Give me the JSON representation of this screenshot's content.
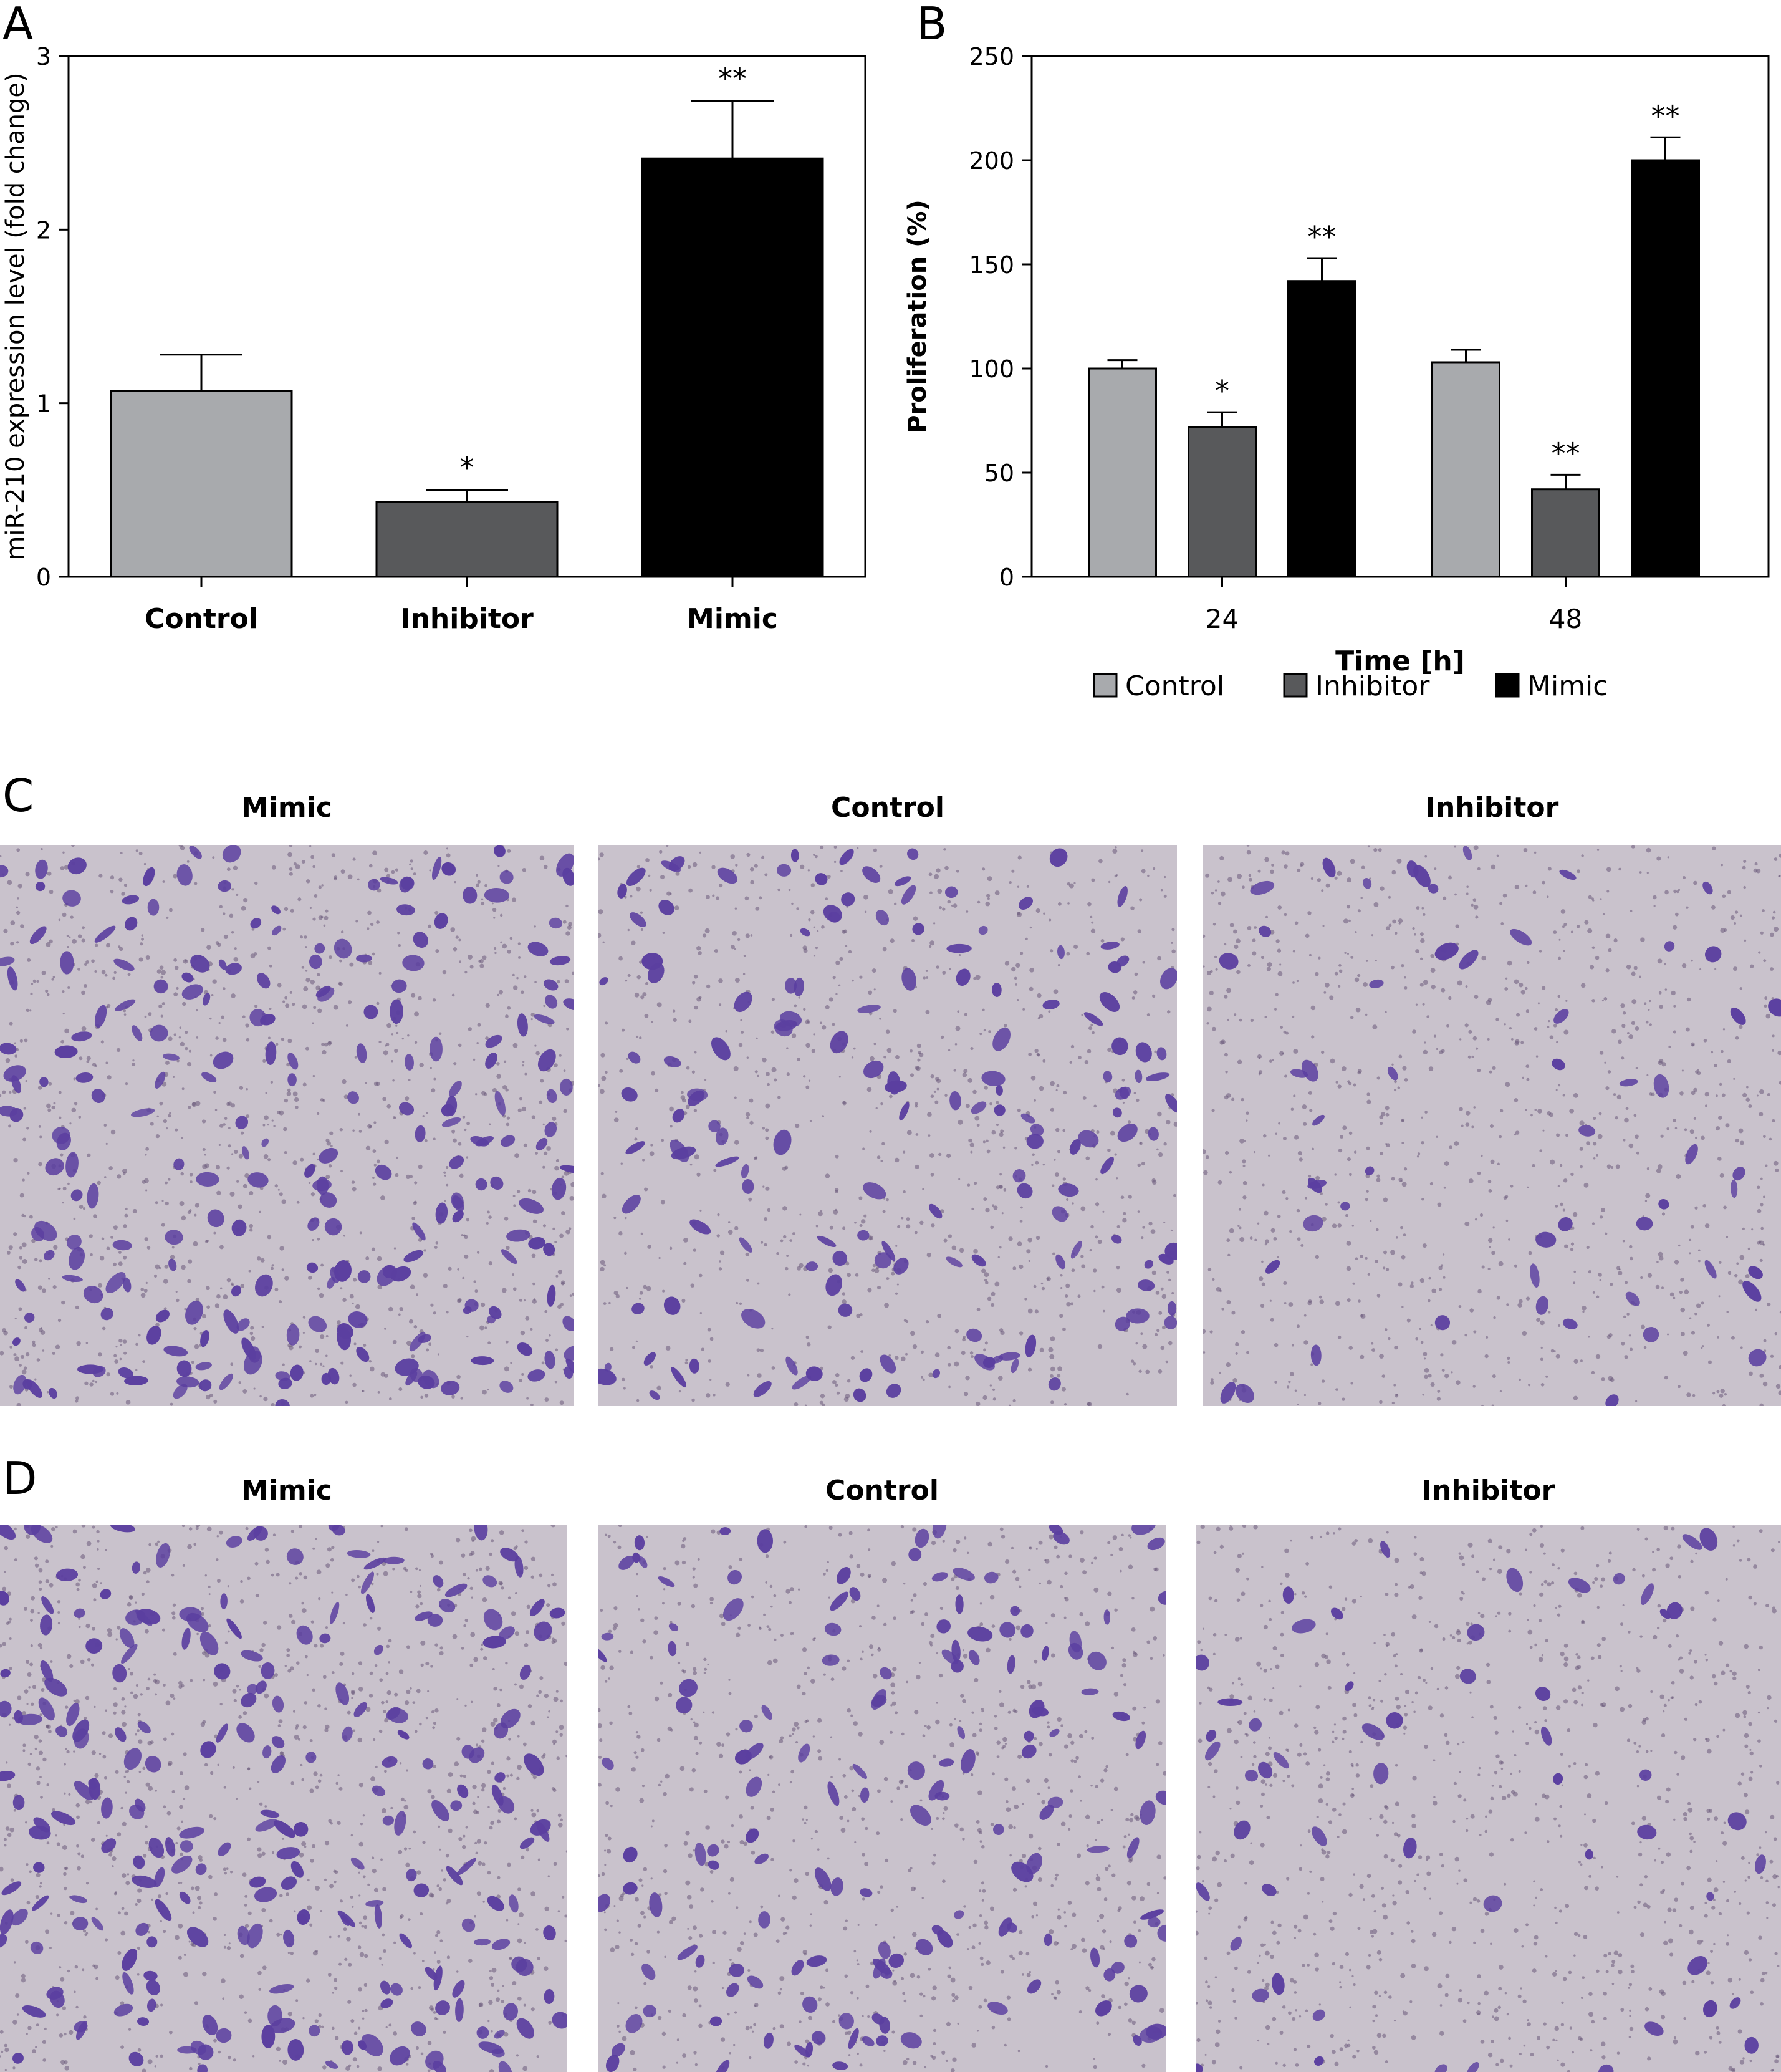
{
  "panels": {
    "A": "A",
    "B": "B",
    "C": "C",
    "D": "D"
  },
  "chart_data": [
    {
      "id": "A",
      "type": "bar",
      "categories": [
        "Control",
        "Inhibitor",
        "Mimic"
      ],
      "values": [
        1.07,
        0.43,
        2.41
      ],
      "errors": [
        0.21,
        0.07,
        0.33
      ],
      "significance": [
        "",
        "*",
        "**"
      ],
      "colors": [
        "#a8aaad",
        "#58595b",
        "#000000"
      ],
      "ylabel": "miR-210 expression level (fold change)",
      "xlabel": "",
      "ylim": [
        0,
        3
      ],
      "yticks": [
        0,
        1,
        2,
        3
      ],
      "grid": false
    },
    {
      "id": "B",
      "type": "bar",
      "categories": [
        "24",
        "48"
      ],
      "series": [
        {
          "name": "Control",
          "values": [
            100,
            103
          ],
          "errors": [
            4,
            6
          ],
          "significance": [
            "",
            ""
          ],
          "color": "#a8aaad"
        },
        {
          "name": "Inhibitor",
          "values": [
            72,
            42
          ],
          "errors": [
            7,
            7
          ],
          "significance": [
            "*",
            "**"
          ],
          "color": "#58595b"
        },
        {
          "name": "Mimic",
          "values": [
            142,
            200
          ],
          "errors": [
            11,
            11
          ],
          "significance": [
            "**",
            "**"
          ],
          "color": "#000000"
        }
      ],
      "xlabel": "Time [h]",
      "ylabel": "Proliferation (%)",
      "ylim": [
        0,
        250
      ],
      "yticks": [
        0,
        50,
        100,
        150,
        200,
        250
      ],
      "legend": "bottom",
      "grid": false
    }
  ],
  "micrographs": {
    "C": [
      {
        "title": "Mimic",
        "density": "high"
      },
      {
        "title": "Control",
        "density": "medium"
      },
      {
        "title": "Inhibitor",
        "density": "low"
      }
    ],
    "D": [
      {
        "title": "Mimic",
        "density": "high"
      },
      {
        "title": "Control",
        "density": "medium"
      },
      {
        "title": "Inhibitor",
        "density": "low"
      }
    ]
  },
  "colors": {
    "stain_background": "#c9c2cc",
    "stain_cell": "#5b3fa0",
    "stain_debris": "#6a5a7a"
  }
}
